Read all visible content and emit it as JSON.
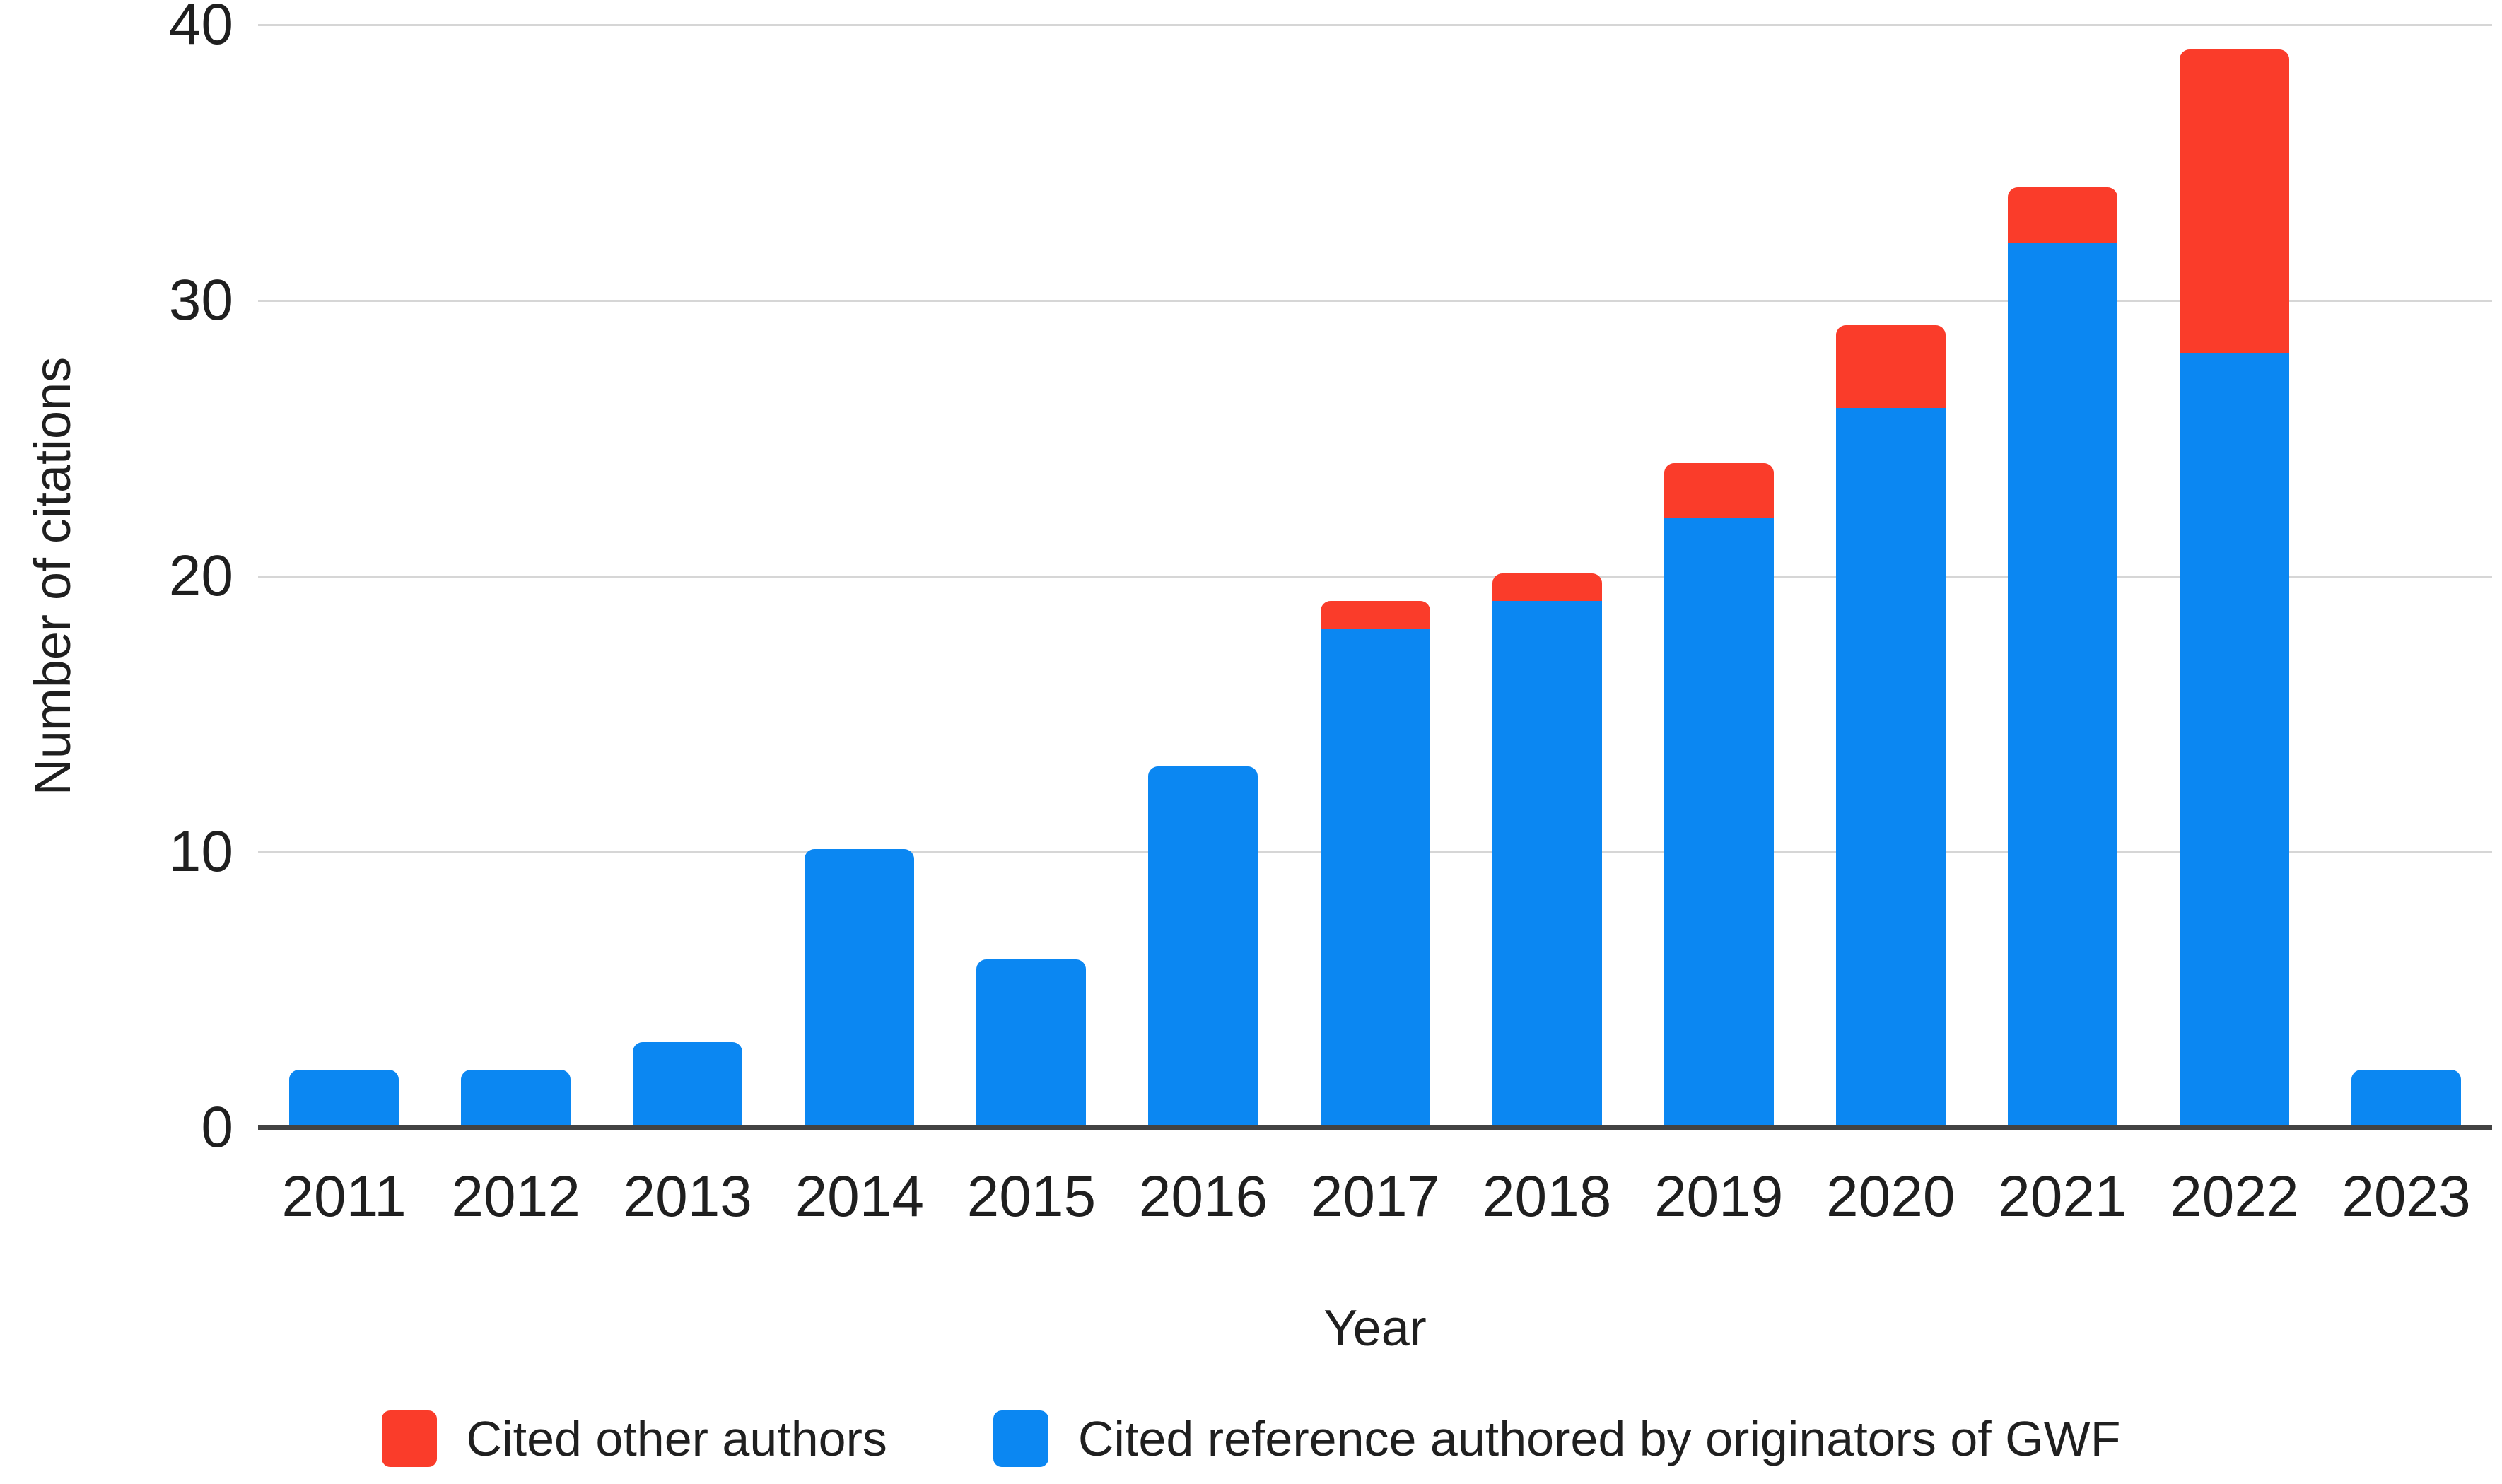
{
  "chart_data": {
    "type": "bar",
    "stacked": true,
    "categories": [
      "2011",
      "2012",
      "2013",
      "2014",
      "2015",
      "2016",
      "2017",
      "2018",
      "2019",
      "2020",
      "2021",
      "2022",
      "2023"
    ],
    "series": [
      {
        "name": "Cited reference authored by originators of GWF",
        "color": "#0b87f2",
        "values": [
          2,
          2,
          3,
          10,
          6,
          13,
          18,
          19,
          22,
          26,
          32,
          28,
          2
        ]
      },
      {
        "name": "Cited other authors",
        "color": "#fa3c2a",
        "values": [
          0,
          0,
          0,
          0,
          0,
          0,
          1,
          1,
          2,
          3,
          2,
          11,
          0
        ]
      }
    ],
    "totals": [
      2,
      2,
      3,
      10,
      6,
      13,
      19,
      20,
      24,
      29,
      34,
      39,
      2
    ],
    "title": "",
    "xlabel": "Year",
    "ylabel": "Number of citations",
    "ylim": [
      0,
      40
    ],
    "yticks": [
      "0",
      "10",
      "20",
      "30",
      "40"
    ],
    "grid": true,
    "legend_position": "bottom",
    "gridline_color": "#d6d6d6",
    "axis_line_color": "#434343",
    "text_color": "#1f1f1f"
  },
  "axes": {
    "x_title": "Year",
    "y_title": "Number of citations"
  },
  "legend": {
    "items": [
      {
        "label": "Cited other authors",
        "color": "#fa3c2a"
      },
      {
        "label": "Cited reference authored by originators of GWF",
        "color": "#0b87f2"
      }
    ]
  }
}
